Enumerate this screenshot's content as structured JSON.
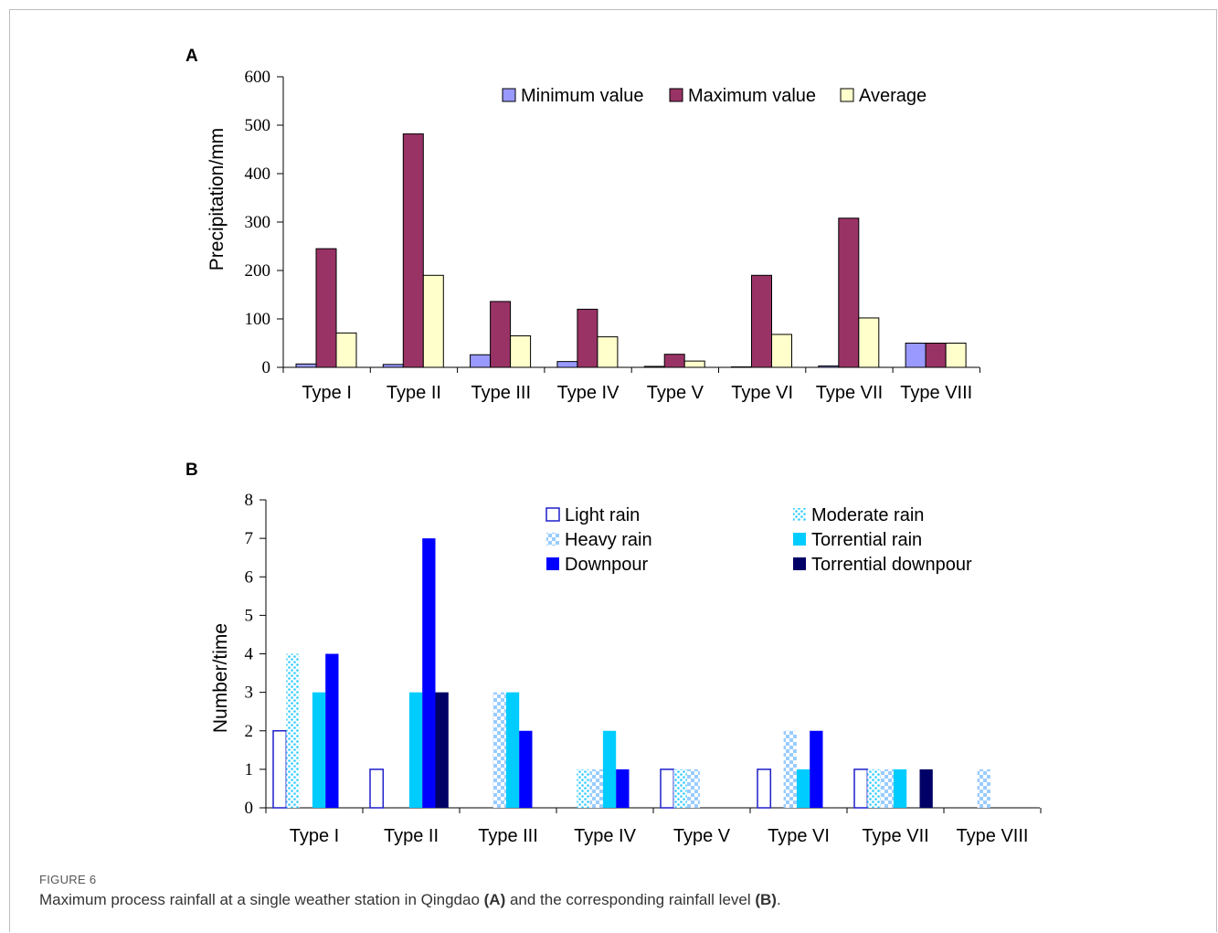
{
  "chart_data": [
    {
      "type": "bar",
      "panel": "A",
      "categories": [
        "Type I",
        "Type II",
        "Type III",
        "Type IV",
        "Type V",
        "Type VI",
        "Type VII",
        "Type VIII"
      ],
      "ylabel": "Precipitation/mm",
      "ylim": [
        0,
        600
      ],
      "yticks": [
        0,
        100,
        200,
        300,
        400,
        500,
        600
      ],
      "legend_placement": "top-right",
      "grid": false,
      "series": [
        {
          "name": "Minimum value",
          "color": "#9999ff",
          "values": [
            7,
            6,
            26,
            12,
            2,
            1,
            3,
            50
          ]
        },
        {
          "name": "Maximum value",
          "color": "#993366",
          "values": [
            245,
            482,
            136,
            120,
            27,
            190,
            308,
            50
          ]
        },
        {
          "name": "Average",
          "color": "#ffffcc",
          "values": [
            71,
            190,
            65,
            63,
            13,
            68,
            102,
            50
          ]
        }
      ]
    },
    {
      "type": "bar",
      "panel": "B",
      "categories": [
        "Type I",
        "Type II",
        "Type III",
        "Type IV",
        "Type V",
        "Type VI",
        "Type VII",
        "Type VIII"
      ],
      "ylabel": "Number/time",
      "ylim": [
        0,
        8
      ],
      "yticks": [
        0,
        1,
        2,
        3,
        4,
        5,
        6,
        7,
        8
      ],
      "legend_placement": "top-right",
      "grid": false,
      "series": [
        {
          "name": "Light rain",
          "color": "#1f1fcc",
          "fill": "none",
          "values": [
            2,
            1,
            0,
            0,
            1,
            1,
            1,
            0
          ]
        },
        {
          "name": "Moderate rain",
          "color": "#33ccff",
          "fill": "dots",
          "values": [
            4,
            0,
            0,
            1,
            1,
            0,
            1,
            0
          ]
        },
        {
          "name": "Heavy rain",
          "color": "#99ccff",
          "fill": "checker",
          "values": [
            0,
            0,
            3,
            1,
            1,
            2,
            1,
            1
          ]
        },
        {
          "name": "Torrential rain",
          "color": "#00ccff",
          "fill": "solid",
          "values": [
            3,
            3,
            3,
            2,
            0,
            1,
            1,
            0
          ]
        },
        {
          "name": "Downpour",
          "color": "#0000ff",
          "fill": "solid",
          "values": [
            4,
            7,
            2,
            1,
            0,
            2,
            0,
            0
          ]
        },
        {
          "name": "Torrential downpour",
          "color": "#000066",
          "fill": "solid",
          "values": [
            0,
            3,
            0,
            0,
            0,
            0,
            1,
            0
          ]
        }
      ]
    }
  ],
  "caption": {
    "label": "FIGURE 6",
    "text_before_a": "Maximum process rainfall at a single weather station in Qingdao ",
    "ref_a": "(A)",
    "text_between": " and the corresponding rainfall level ",
    "ref_b": "(B)",
    "text_after": "."
  }
}
